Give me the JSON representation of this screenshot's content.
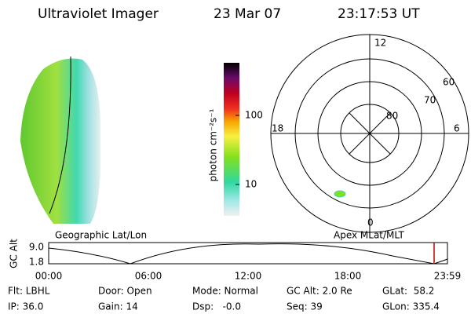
{
  "header": {
    "title": "Ultraviolet Imager",
    "date": "23 Mar 07",
    "time": "23:17:53 UT"
  },
  "colorbar": {
    "label": "photon cm⁻²s⁻¹",
    "ticks": [
      "100",
      "10"
    ]
  },
  "polar": {
    "mlt_labels": [
      "12",
      "6",
      "0",
      "18"
    ],
    "lat_labels": [
      "60",
      "70",
      "80"
    ]
  },
  "altitude": {
    "left_caption": "Geographic Lat/Lon",
    "right_caption": "Apex MLat/MLT",
    "ylabel": "GC Alt",
    "yticks": [
      "9.0",
      "1.8"
    ],
    "xticks": [
      "00:00",
      "06:00",
      "12:00",
      "18:00",
      "23:59"
    ]
  },
  "footer": {
    "rows": [
      [
        "Flt: LBHL",
        "Door: Open",
        "Mode: Normal",
        "GC Alt: 2.0 Re",
        "GLat:  58.2"
      ],
      [
        "IP: 36.0",
        "Gain: 14",
        "Dsp:   -0.0",
        "Seq: 39",
        "GLon: 335.4"
      ]
    ]
  }
}
